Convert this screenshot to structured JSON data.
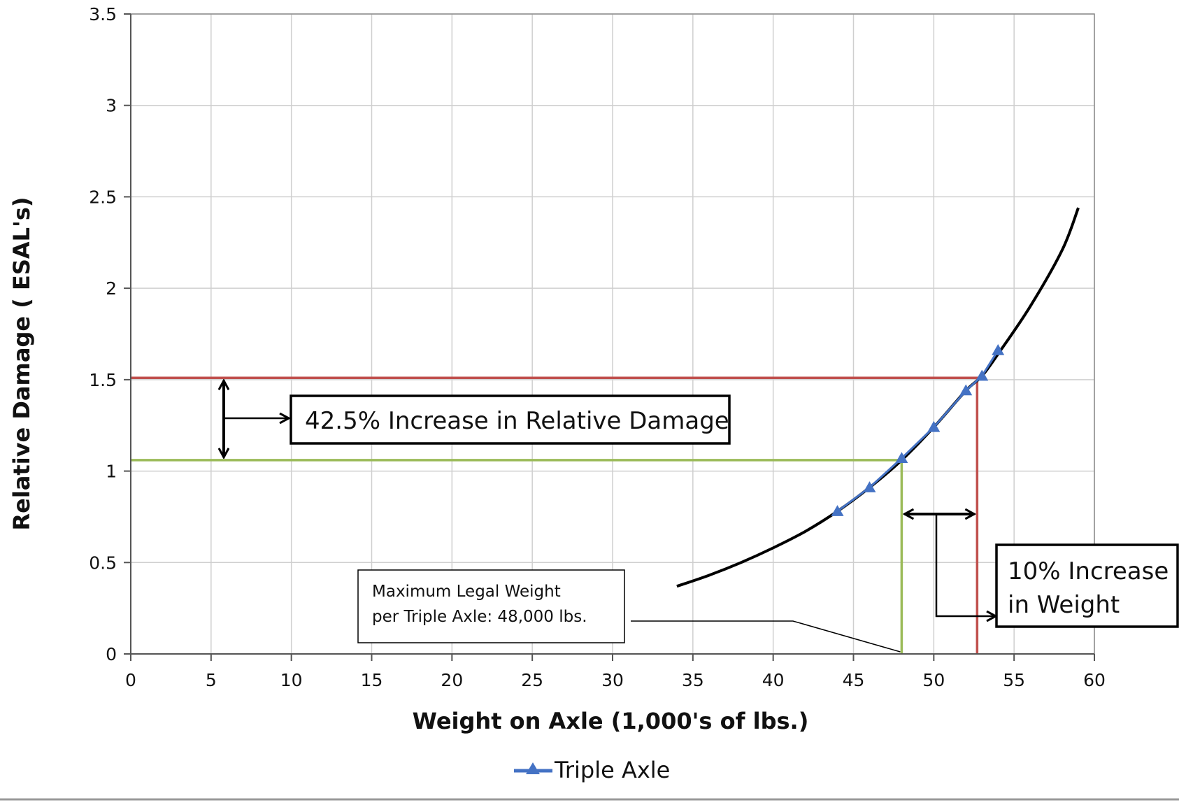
{
  "chart_data": {
    "type": "line",
    "xlabel": "Weight on Axle (1,000's of lbs.)",
    "ylabel": "Relative Damage ( ESAL's)",
    "xlim": [
      0,
      60
    ],
    "ylim": [
      0,
      3.5
    ],
    "x_ticks": [
      0,
      5,
      10,
      15,
      20,
      25,
      30,
      35,
      40,
      45,
      50,
      55,
      60
    ],
    "y_ticks": [
      0,
      0.5,
      1,
      1.5,
      2,
      2.5,
      3,
      3.5
    ],
    "x_tick_labels": [
      "0",
      "5",
      "10",
      "15",
      "20",
      "25",
      "30",
      "35",
      "40",
      "45",
      "50",
      "55",
      "60"
    ],
    "y_tick_labels": [
      "0",
      "0.5",
      "1",
      "1.5",
      "2",
      "2.5",
      "3",
      "3.5"
    ],
    "grid": true,
    "legend_position": "bottom-center",
    "series": [
      {
        "name": "Triple Axle",
        "color": "#4472C4",
        "marker": "triangle",
        "x": [
          44,
          46,
          48,
          50,
          52,
          53,
          54
        ],
        "y": [
          0.78,
          0.91,
          1.07,
          1.24,
          1.44,
          1.52,
          1.66
        ]
      }
    ],
    "trendline": {
      "color": "#000000",
      "x": [
        34,
        36,
        38,
        40,
        42,
        44,
        46,
        48,
        50,
        52,
        53,
        54,
        56,
        58,
        59
      ],
      "y": [
        0.37,
        0.43,
        0.5,
        0.58,
        0.67,
        0.78,
        0.91,
        1.06,
        1.24,
        1.44,
        1.52,
        1.64,
        1.9,
        2.21,
        2.44
      ]
    },
    "reference_lines": {
      "legal": {
        "color": "#9BBB59",
        "x": 48,
        "y": 1.06
      },
      "increased": {
        "color": "#C0504D",
        "x": 52.7,
        "y": 1.51
      }
    },
    "annotations": [
      {
        "id": "damage-increase",
        "text": "42.5% Increase in Relative Damage"
      },
      {
        "id": "weight-increase",
        "lines": [
          "10% Increase",
          "in Weight"
        ]
      },
      {
        "id": "legal-weight",
        "lines": [
          "Maximum Legal Weight",
          "per Triple Axle: 48,000 lbs."
        ]
      }
    ]
  }
}
